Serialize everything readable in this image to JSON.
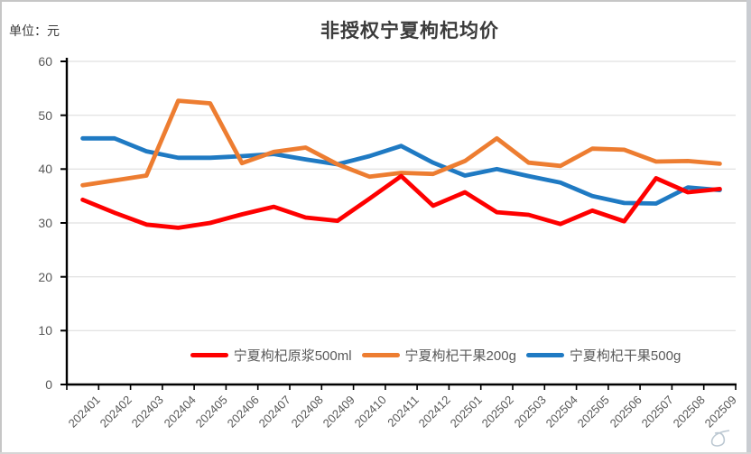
{
  "window": {
    "unit_label": "单位：元",
    "title": "非授权宁夏枸杞均价"
  },
  "chart_data": {
    "type": "line",
    "title": "非授权宁夏枸杞均价",
    "unit_label": "单位：元",
    "categories": [
      "202401",
      "202402",
      "202403",
      "202404",
      "202405",
      "202406",
      "202407",
      "202408",
      "202409",
      "202410",
      "202411",
      "202412",
      "202501",
      "202502",
      "202503",
      "202504",
      "202505",
      "202506",
      "202507",
      "202508",
      "202509"
    ],
    "series": [
      {
        "name": "宁夏枸杞原浆500ml",
        "color": "#fe0000",
        "values": [
          34.3,
          31.9,
          29.7,
          29.1,
          30.0,
          31.6,
          33.0,
          31.0,
          30.4,
          34.5,
          38.7,
          33.2,
          35.7,
          32.0,
          31.5,
          29.8,
          32.3,
          30.3,
          38.3,
          35.7,
          36.3
        ]
      },
      {
        "name": "宁夏枸杞干果200g",
        "color": "#ed7d31",
        "values": [
          37.0,
          37.9,
          38.8,
          52.7,
          52.2,
          41.1,
          43.2,
          44.0,
          40.9,
          38.6,
          39.3,
          39.1,
          41.5,
          45.7,
          41.2,
          40.6,
          43.8,
          43.6,
          41.4,
          41.5,
          41.0
        ]
      },
      {
        "name": "宁夏枸杞干果500g",
        "color": "#1f7ac3",
        "values": [
          45.7,
          45.7,
          43.3,
          42.1,
          42.1,
          42.4,
          42.8,
          41.8,
          40.9,
          42.4,
          44.3,
          41.2,
          38.8,
          40.0,
          38.7,
          37.5,
          35.0,
          33.7,
          33.6,
          36.6,
          36.1
        ]
      }
    ],
    "ylim": [
      0,
      60
    ],
    "yticks": [
      0,
      10,
      20,
      30,
      40,
      50,
      60
    ],
    "grid": true,
    "legend_position": "bottom",
    "axis_color": "#000000",
    "gridline_color": "#dadada",
    "tick_label_color": "#595959"
  }
}
